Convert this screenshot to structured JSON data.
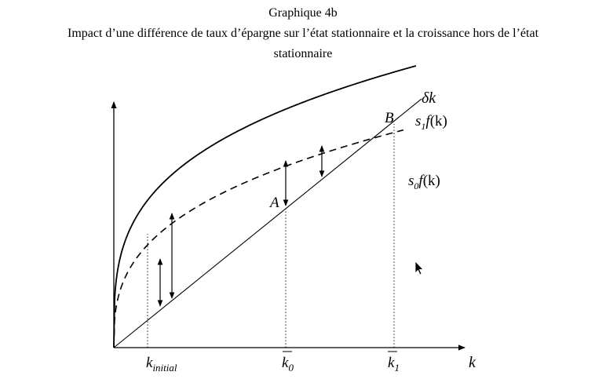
{
  "title": {
    "line1": "Graphique 4b",
    "line2": "Impact d’une différence de taux d’épargne sur l’état stationnaire et la croissance hors de l’état",
    "line3": "stationnaire"
  },
  "labels": {
    "delta": "δ",
    "k": "k",
    "s": "s",
    "f": "f",
    "paren_k": "(k)",
    "sub1": "1",
    "sub0": "0",
    "sub_initial": "initial",
    "point_A": "A",
    "point_B": "B"
  },
  "curves": {
    "high_saving": "s1·f(k)",
    "low_saving": "s0·f(k)",
    "depreciation": "δk"
  }
}
